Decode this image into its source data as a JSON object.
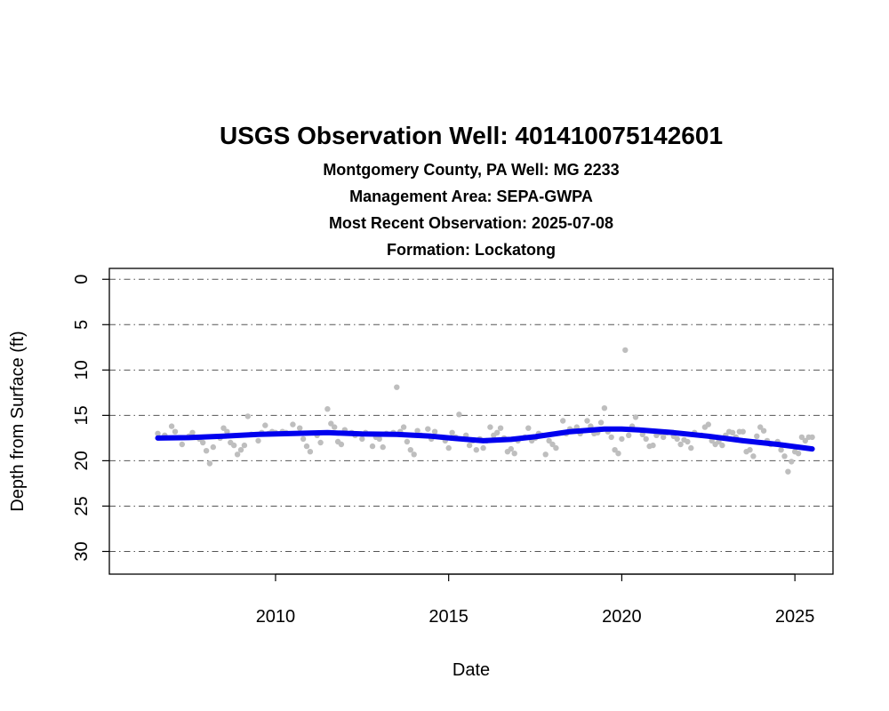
{
  "chart_data": {
    "type": "scatter",
    "title": "USGS Observation Well:  401410075142601",
    "subtitles": [
      "Montgomery County, PA   Well: MG 2233",
      "Management Area: SEPA-GWPA",
      "Most Recent Observation: 2025-07-08",
      "Formation: Lockatong"
    ],
    "xlabel": "Date",
    "ylabel": "Depth from Surface (ft)",
    "xlim": [
      2005.2,
      2026.1
    ],
    "ylim": [
      32.5,
      -1.2
    ],
    "y_inverted": true,
    "x_ticks": [
      2010,
      2015,
      2020,
      2025
    ],
    "y_ticks": [
      0,
      5,
      10,
      15,
      20,
      25,
      30
    ],
    "grid": {
      "horizontal": true,
      "style": "dash-dot",
      "color": "#555555"
    },
    "colors": {
      "points": "#bebebe",
      "trend": "#0000ee"
    },
    "series": [
      {
        "kind": "points",
        "x": [
          2006.6,
          2006.8,
          2007.0,
          2007.1,
          2007.3,
          2007.5,
          2007.6,
          2007.8,
          2007.9,
          2008.0,
          2008.1,
          2008.2,
          2008.4,
          2008.5,
          2008.6,
          2008.7,
          2008.8,
          2008.9,
          2009.0,
          2009.1,
          2009.2,
          2009.3,
          2009.5,
          2009.6,
          2009.7,
          2009.8,
          2009.9,
          2010.0,
          2010.2,
          2010.3,
          2010.5,
          2010.7,
          2010.8,
          2010.9,
          2011.0,
          2011.2,
          2011.3,
          2011.5,
          2011.6,
          2011.7,
          2011.8,
          2011.9,
          2012.0,
          2012.2,
          2012.3,
          2012.5,
          2012.6,
          2012.8,
          2012.9,
          2013.0,
          2013.1,
          2013.2,
          2013.4,
          2013.5,
          2013.6,
          2013.7,
          2013.8,
          2013.9,
          2014.0,
          2014.1,
          2014.2,
          2014.4,
          2014.5,
          2014.6,
          2014.8,
          2014.9,
          2015.0,
          2015.1,
          2015.2,
          2015.3,
          2015.5,
          2015.6,
          2015.7,
          2015.8,
          2015.9,
          2016.0,
          2016.1,
          2016.2,
          2016.3,
          2016.4,
          2016.5,
          2016.6,
          2016.7,
          2016.8,
          2016.9,
          2017.0,
          2017.2,
          2017.3,
          2017.4,
          2017.5,
          2017.6,
          2017.7,
          2017.8,
          2017.9,
          2018.0,
          2018.1,
          2018.3,
          2018.4,
          2018.5,
          2018.6,
          2018.7,
          2018.8,
          2019.0,
          2019.1,
          2019.2,
          2019.3,
          2019.4,
          2019.5,
          2019.6,
          2019.7,
          2019.8,
          2019.9,
          2020.0,
          2020.1,
          2020.2,
          2020.3,
          2020.4,
          2020.6,
          2020.7,
          2020.8,
          2020.9,
          2021.0,
          2021.1,
          2021.2,
          2021.3,
          2021.5,
          2021.6,
          2021.7,
          2021.8,
          2021.9,
          2022.0,
          2022.1,
          2022.3,
          2022.4,
          2022.5,
          2022.6,
          2022.7,
          2022.8,
          2022.9,
          2023.0,
          2023.1,
          2023.2,
          2023.3,
          2023.4,
          2023.5,
          2023.6,
          2023.7,
          2023.8,
          2023.9,
          2024.0,
          2024.1,
          2024.2,
          2024.3,
          2024.5,
          2024.6,
          2024.7,
          2024.8,
          2024.9,
          2025.0,
          2025.1,
          2025.2,
          2025.3,
          2025.4,
          2025.5
        ],
        "y": [
          17.0,
          17.2,
          16.2,
          16.8,
          18.2,
          17.3,
          16.9,
          17.6,
          18.0,
          18.9,
          20.3,
          18.5,
          17.5,
          16.4,
          16.8,
          18.0,
          18.3,
          19.3,
          18.8,
          18.3,
          15.1,
          17.1,
          17.8,
          16.9,
          16.1,
          17.0,
          16.8,
          16.9,
          16.8,
          16.9,
          16.0,
          16.4,
          17.6,
          18.4,
          19.0,
          17.2,
          18.0,
          14.3,
          15.9,
          16.3,
          17.9,
          18.2,
          16.6,
          16.9,
          17.2,
          17.6,
          16.9,
          18.4,
          17.4,
          17.6,
          18.5,
          17.0,
          16.9,
          11.9,
          16.8,
          16.3,
          17.9,
          18.8,
          19.3,
          16.7,
          17.2,
          16.5,
          17.6,
          16.8,
          17.4,
          17.8,
          18.6,
          16.9,
          17.4,
          14.9,
          17.2,
          18.3,
          17.8,
          18.8,
          17.6,
          18.6,
          17.8,
          16.3,
          17.2,
          16.9,
          16.4,
          17.5,
          19.0,
          18.7,
          19.2,
          17.8,
          17.4,
          16.4,
          17.8,
          17.5,
          17.0,
          17.2,
          19.3,
          17.8,
          18.2,
          18.6,
          15.6,
          17.0,
          16.5,
          16.7,
          16.3,
          17.0,
          15.6,
          16.2,
          17.0,
          16.9,
          15.8,
          14.2,
          16.8,
          17.4,
          18.8,
          19.2,
          17.6,
          7.8,
          17.2,
          16.2,
          15.2,
          17.1,
          17.6,
          18.4,
          18.3,
          17.2,
          16.9,
          17.4,
          16.9,
          17.3,
          17.6,
          18.2,
          17.7,
          17.9,
          18.6,
          16.9,
          17.2,
          16.3,
          16.0,
          17.8,
          18.2,
          17.9,
          18.3,
          17.2,
          16.8,
          16.9,
          17.4,
          16.8,
          16.8,
          19.0,
          18.8,
          19.5,
          17.3,
          16.3,
          16.7,
          17.8,
          18.2,
          17.9,
          18.8,
          19.5,
          21.2,
          20.1,
          19.0,
          19.2,
          17.4,
          17.8,
          17.4,
          17.4
        ]
      },
      {
        "kind": "trend",
        "x": [
          2006.6,
          2007.5,
          2008.5,
          2009.5,
          2010.5,
          2011.5,
          2012.5,
          2013.5,
          2014.5,
          2015.2,
          2016.0,
          2016.8,
          2017.5,
          2018.5,
          2019.5,
          2020.0,
          2020.5,
          2021.5,
          2022.5,
          2023.5,
          2024.5,
          2025.5
        ],
        "y": [
          17.5,
          17.45,
          17.3,
          17.1,
          17.0,
          16.9,
          17.05,
          17.1,
          17.3,
          17.55,
          17.8,
          17.65,
          17.35,
          16.8,
          16.5,
          16.5,
          16.6,
          16.9,
          17.3,
          17.8,
          18.2,
          18.7
        ]
      }
    ]
  }
}
